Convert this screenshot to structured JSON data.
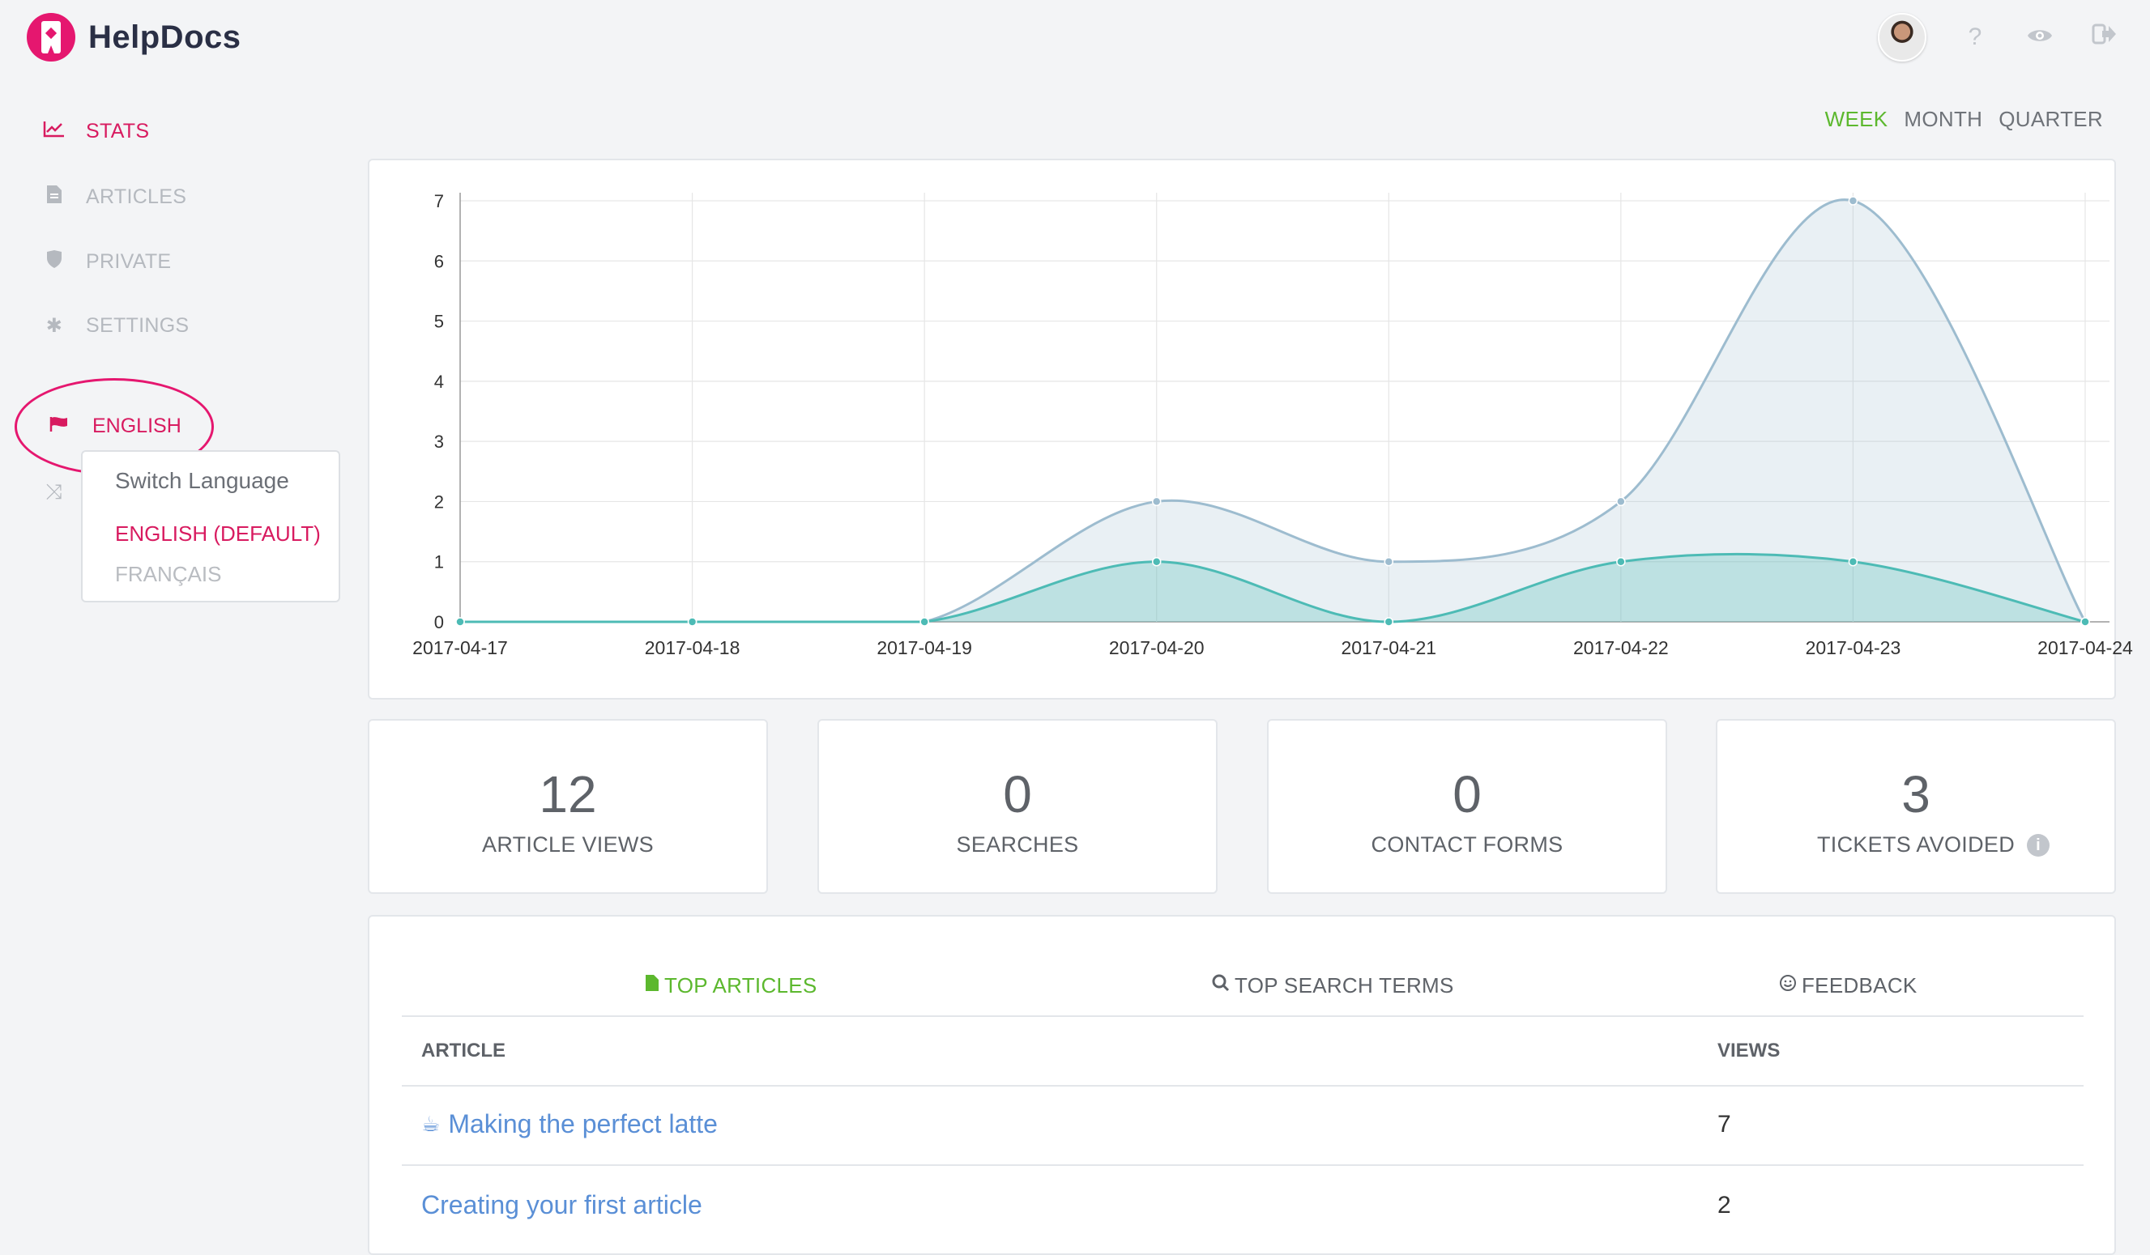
{
  "app": {
    "name": "HelpDocs",
    "brand_color": "#e5176f",
    "accent_green": "#5cb82e"
  },
  "header": {
    "icons": [
      "avatar",
      "help-icon",
      "eye-icon",
      "logout-icon"
    ],
    "help_glyph": "?"
  },
  "sidebar": {
    "items": [
      {
        "label": "STATS",
        "icon": "chart-line-icon",
        "active": true
      },
      {
        "label": "ARTICLES",
        "icon": "file-icon",
        "active": false
      },
      {
        "label": "PRIVATE",
        "icon": "shield-icon",
        "active": false
      },
      {
        "label": "SETTINGS",
        "icon": "gear-icon",
        "active": false
      }
    ],
    "language": {
      "label": "ENGLISH",
      "icon": "flag-icon"
    },
    "switch_icon": "shuffle-icon",
    "dropdown": {
      "heading": "Switch Language",
      "options": [
        {
          "label": "ENGLISH (DEFAULT)",
          "selected": true
        },
        {
          "label": "FRANÇAIS",
          "selected": false
        }
      ]
    }
  },
  "period": {
    "options": [
      "WEEK",
      "MONTH",
      "QUARTER"
    ],
    "selected": "WEEK"
  },
  "chart_data": {
    "type": "area",
    "x": [
      "2017-04-17",
      "2017-04-18",
      "2017-04-19",
      "2017-04-20",
      "2017-04-21",
      "2017-04-22",
      "2017-04-23",
      "2017-04-24"
    ],
    "series": [
      {
        "values": [
          0,
          0,
          0,
          2,
          1,
          2,
          7,
          0
        ],
        "color": "#9dbccf"
      },
      {
        "values": [
          0,
          0,
          0,
          1,
          0,
          1,
          1,
          0
        ],
        "color": "#4dbbb5"
      }
    ],
    "ylim": [
      0,
      7
    ],
    "yticks": [
      0,
      1,
      2,
      3,
      4,
      5,
      6,
      7
    ],
    "grid": true
  },
  "stats": [
    {
      "value": "12",
      "label": "ARTICLE VIEWS"
    },
    {
      "value": "0",
      "label": "SEARCHES"
    },
    {
      "value": "0",
      "label": "CONTACT FORMS"
    },
    {
      "value": "3",
      "label": "TICKETS AVOIDED",
      "info": "i"
    }
  ],
  "tabs": [
    {
      "label": "TOP ARTICLES",
      "icon": "file-icon",
      "active": true
    },
    {
      "label": "TOP SEARCH TERMS",
      "icon": "search-icon",
      "active": false
    },
    {
      "label": "FEEDBACK",
      "icon": "smile-icon",
      "active": false
    }
  ],
  "table": {
    "columns": [
      "ARTICLE",
      "VIEWS"
    ],
    "rows": [
      {
        "emoji": "☕",
        "title": "Making the perfect latte",
        "views": "7"
      },
      {
        "emoji": "",
        "title": "Creating your first article",
        "views": "2"
      }
    ]
  }
}
